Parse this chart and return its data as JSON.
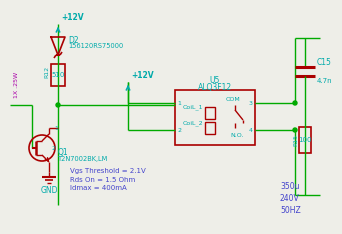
{
  "bg_color": "#eeeee8",
  "wire_color": "#00aa00",
  "comp_color": "#aa0000",
  "text_cyan": "#00aaaa",
  "text_magenta": "#aa00aa",
  "text_blue": "#4444cc",
  "components": {
    "vcc1_label": "+12V",
    "vcc2_label": "+12V",
    "d2_label": "D2",
    "d2_part": "156120RS75000",
    "r12_label": "R12",
    "r12_val": "510",
    "r12_rating": "1X .25W",
    "q1_label": "Q1",
    "q1_part": "T2N7002BK,LM",
    "gnd_label": "GND",
    "u5_label": "U5",
    "u5_part": "ALQ3F12",
    "coil1": "CoiL_1",
    "coil2": "CoiL_2",
    "com": "COM",
    "no": "N.O.",
    "c15_label": "C15",
    "c15_val": "4.7n",
    "r15_label": "R15",
    "r15_val": "100",
    "load_label": "350u\n240V\n50HZ",
    "vgs_text": "Vgs Threshold = 2.1V\nRds On = 1.5 Ohm\nIdmax = 400mA",
    "pin1": "1",
    "pin2": "2",
    "pin3": "3",
    "pin4": "4"
  }
}
